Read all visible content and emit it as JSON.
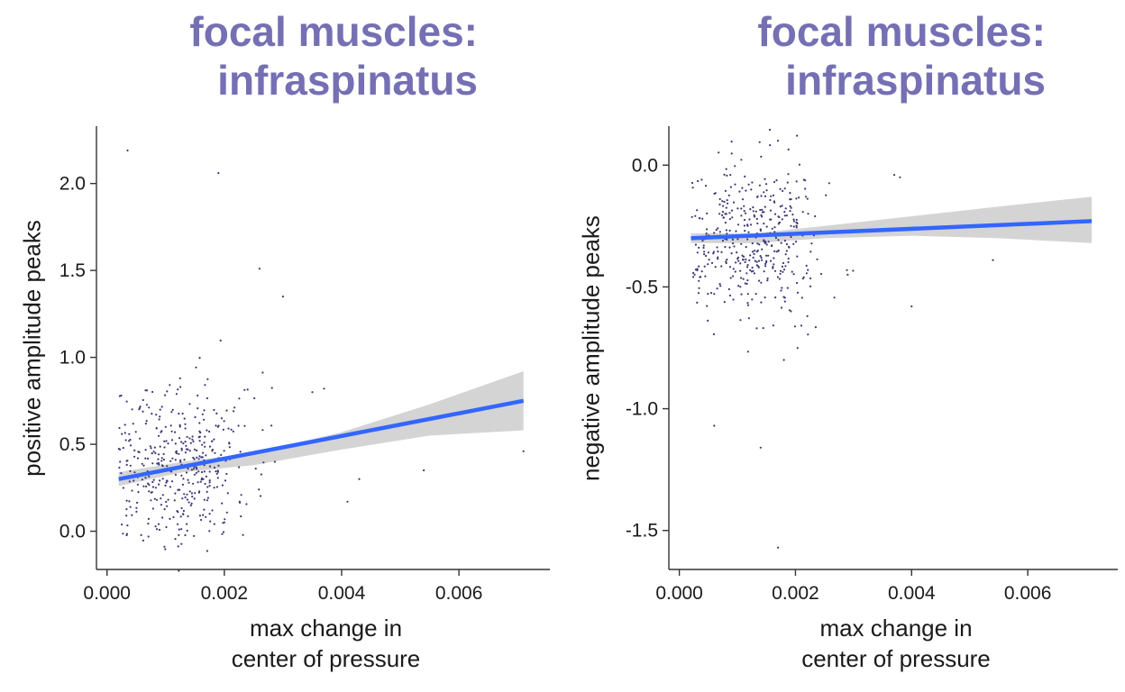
{
  "colors": {
    "title": "#7570b3",
    "points": "#3d3875",
    "fit_line": "#3366ff",
    "ribbon": "#cccccc",
    "axis": "#333333",
    "text": "#1a1a1a"
  },
  "chart_data": [
    {
      "type": "scatter",
      "title_line1": "focal muscles:",
      "title_line2": "infraspinatus",
      "xlabel_line1": "max change in",
      "xlabel_line2": "center of pressure",
      "ylabel": "positive amplitude peaks",
      "xlim": [
        -0.00018,
        0.00755
      ],
      "ylim": [
        -0.22,
        2.33
      ],
      "xticks": [
        0.0,
        0.002,
        0.004,
        0.006
      ],
      "xtick_labels": [
        "0.000",
        "0.002",
        "0.004",
        "0.006"
      ],
      "yticks": [
        0.0,
        0.5,
        1.0,
        1.5,
        2.0
      ],
      "ytick_labels": [
        "0.0",
        "0.5",
        "1.0",
        "1.5",
        "2.0"
      ],
      "grid": false,
      "legend": "none",
      "fit": {
        "x": [
          0.0002,
          0.0071
        ],
        "y": [
          0.3,
          0.75
        ]
      },
      "ribbon": {
        "x": [
          0.0002,
          0.0013,
          0.0025,
          0.004,
          0.0055,
          0.0071
        ],
        "upper": [
          0.34,
          0.4,
          0.45,
          0.57,
          0.73,
          0.92
        ],
        "lower": [
          0.26,
          0.34,
          0.38,
          0.47,
          0.55,
          0.58
        ]
      },
      "points": {
        "n": 420,
        "x_center": 0.00125,
        "x_spread": 0.0006,
        "y_center": 0.38,
        "y_spread": 0.23,
        "seed": 7,
        "extra_x": [
          0.00035,
          0.0019,
          0.0026,
          0.003,
          0.0035,
          0.0037,
          0.0041,
          0.0043,
          0.0054,
          0.0071
        ],
        "extra_y": [
          2.19,
          2.06,
          1.51,
          1.35,
          0.8,
          0.82,
          0.17,
          0.3,
          0.35,
          0.46
        ]
      }
    },
    {
      "type": "scatter",
      "title_line1": "focal muscles:",
      "title_line2": "infraspinatus",
      "xlabel_line1": "max change in",
      "xlabel_line2": "center of pressure",
      "ylabel": "negative amplitude peaks",
      "xlim": [
        -0.00018,
        0.00755
      ],
      "ylim": [
        -1.66,
        0.16
      ],
      "xticks": [
        0.0,
        0.002,
        0.004,
        0.006
      ],
      "xtick_labels": [
        "0.000",
        "0.002",
        "0.004",
        "0.006"
      ],
      "yticks": [
        0.0,
        -0.5,
        -1.0,
        -1.5
      ],
      "ytick_labels": [
        "0.0",
        "-0.5",
        "-1.0",
        "-1.5"
      ],
      "grid": false,
      "legend": "none",
      "fit": {
        "x": [
          0.0002,
          0.0071
        ],
        "y": [
          -0.3,
          -0.23
        ]
      },
      "ribbon": {
        "x": [
          0.0002,
          0.0013,
          0.0025,
          0.004,
          0.0055,
          0.0071
        ],
        "upper": [
          -0.28,
          -0.28,
          -0.25,
          -0.21,
          -0.17,
          -0.13
        ],
        "lower": [
          -0.32,
          -0.32,
          -0.3,
          -0.29,
          -0.3,
          -0.32
        ]
      },
      "points": {
        "n": 420,
        "x_center": 0.00125,
        "x_spread": 0.0006,
        "y_center": -0.3,
        "y_spread": 0.16,
        "seed": 11,
        "extra_x": [
          0.0006,
          0.0014,
          0.0017,
          0.0018,
          0.0037,
          0.004,
          0.0054,
          0.0029,
          0.0038
        ],
        "extra_y": [
          -1.07,
          -1.16,
          -1.57,
          -0.8,
          -0.04,
          -0.58,
          -0.39,
          -0.45,
          -0.05
        ]
      }
    }
  ]
}
